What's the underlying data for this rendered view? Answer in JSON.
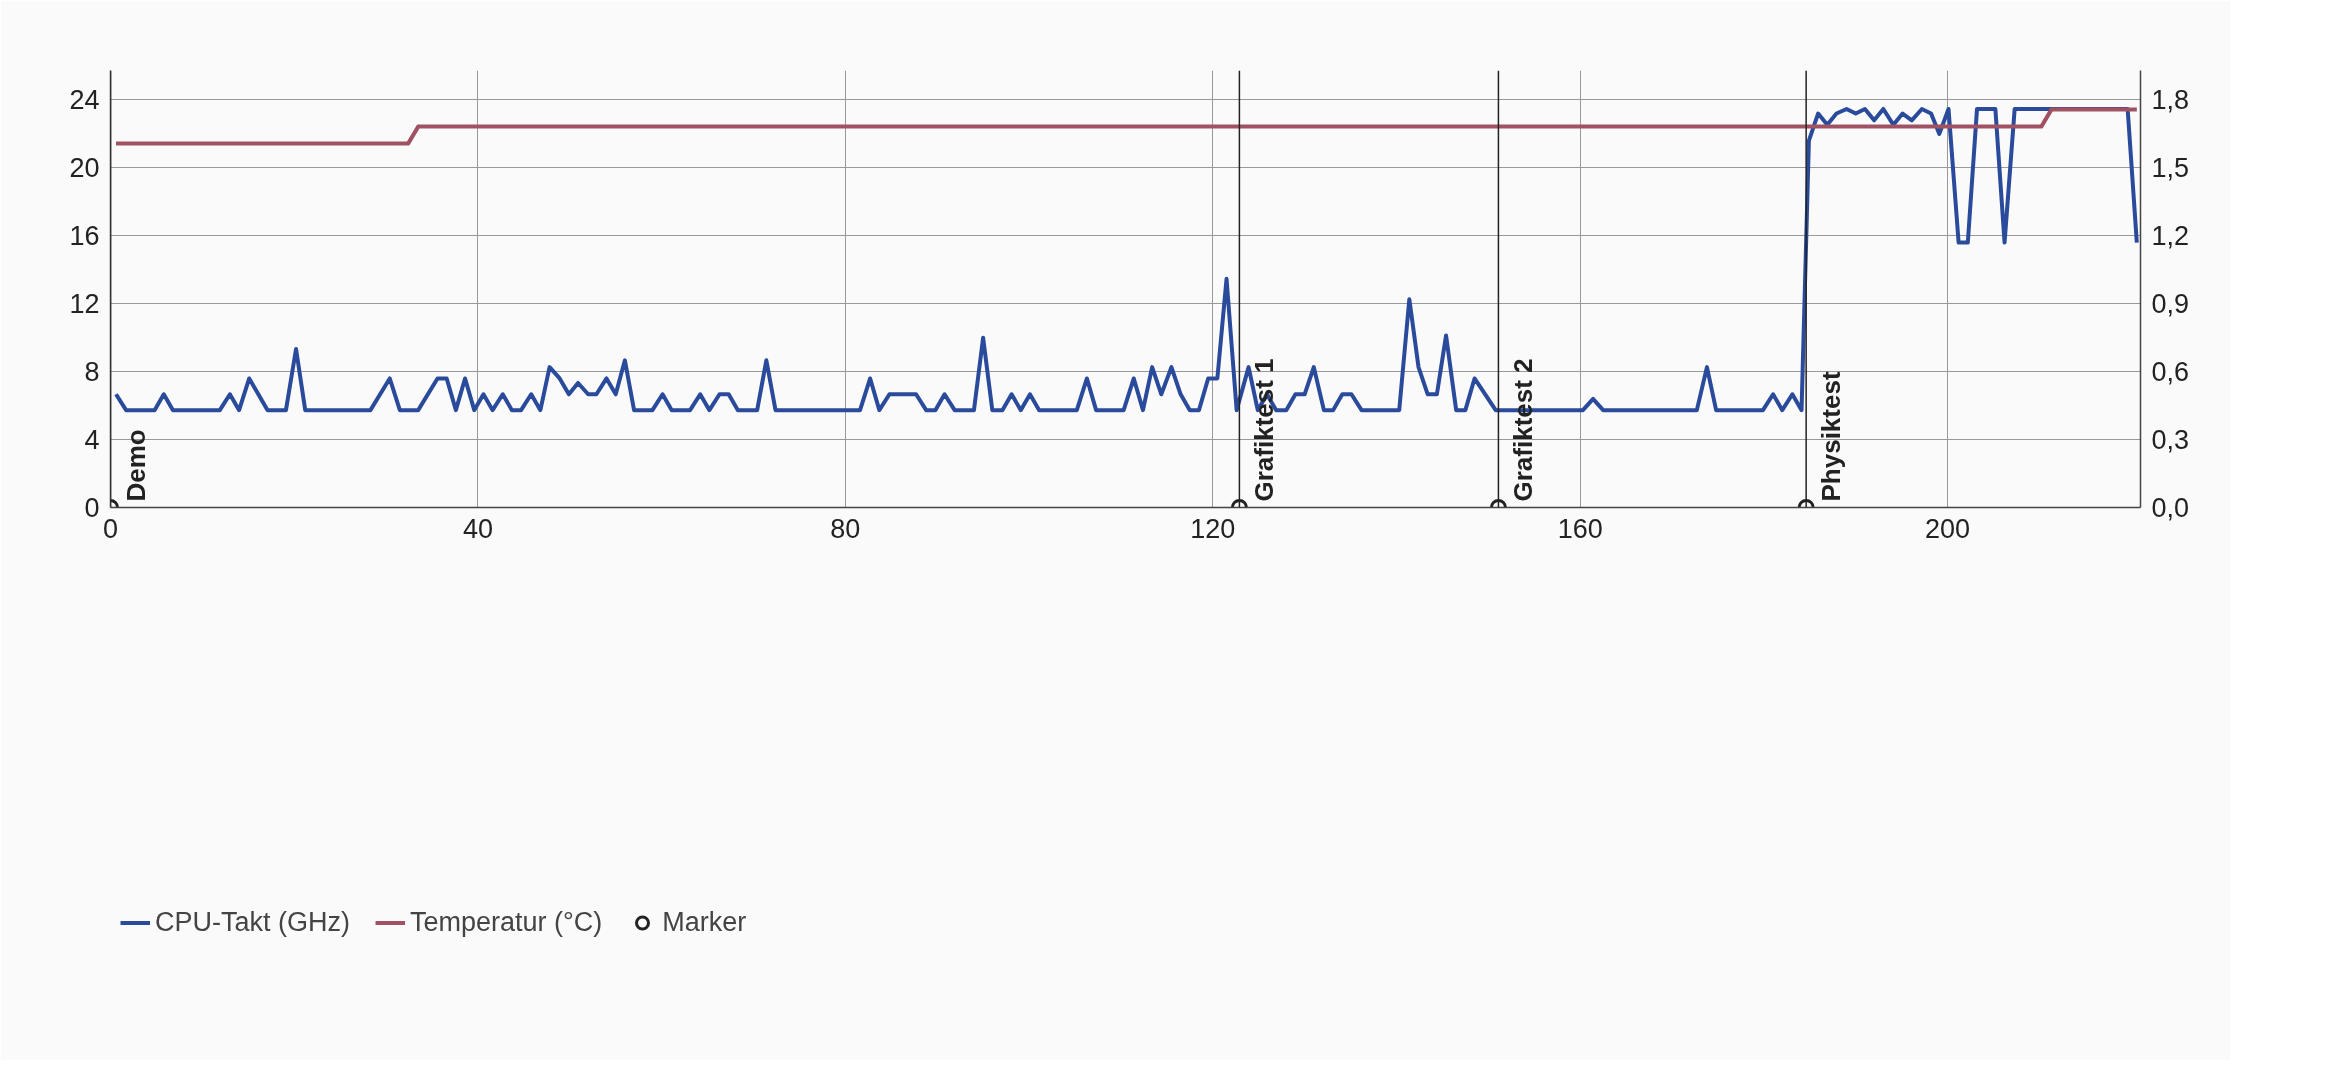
{
  "chart_data": {
    "type": "line",
    "xlim": [
      0,
      221
    ],
    "xticks": [
      0,
      40,
      80,
      120,
      160,
      200
    ],
    "ylim": [
      0,
      25.7
    ],
    "yticks": [
      0,
      4,
      8,
      12,
      16,
      20,
      24
    ],
    "y2lim": [
      0,
      1.93
    ],
    "y2ticks": [
      {
        "value": 0,
        "label": "0,0"
      },
      {
        "value": 0.3,
        "label": "0,3"
      },
      {
        "value": 0.6,
        "label": "0,6"
      },
      {
        "value": 0.9,
        "label": "0,9"
      },
      {
        "value": 1.2,
        "label": "1,2"
      },
      {
        "value": 1.5,
        "label": "1,5"
      },
      {
        "value": 1.8,
        "label": "1,8"
      }
    ],
    "grid": true,
    "legend": "bottom left",
    "line_style": "solid",
    "series": [
      {
        "name": "CPU-Takt (GHz)",
        "color": "#2a4b9b",
        "axis": "y2",
        "x": [
          0.6,
          1.7,
          4.8,
          5.8,
          6.8,
          11.9,
          13.0,
          14.0,
          15.1,
          17.1,
          19.1,
          20.2,
          21.2,
          28.3,
          30.4,
          31.5,
          33.5,
          35.6,
          36.6,
          37.6,
          38.6,
          39.6,
          40.6,
          41.6,
          42.7,
          43.7,
          44.7,
          45.8,
          46.8,
          47.8,
          48.9,
          49.9,
          50.9,
          52.0,
          52.9,
          54.0,
          55.0,
          56.0,
          57.0,
          59.0,
          60.1,
          61.1,
          63.1,
          64.2,
          65.2,
          66.3,
          67.3,
          68.3,
          70.4,
          71.4,
          72.4,
          81.6,
          82.7,
          83.7,
          84.8,
          87.7,
          88.8,
          89.8,
          90.8,
          91.9,
          94.0,
          95.0,
          96.0,
          97.1,
          98.1,
          99.1,
          100.1,
          101.1,
          105.2,
          106.3,
          107.3,
          110.3,
          111.4,
          112.4,
          113.4,
          114.4,
          115.5,
          116.5,
          117.5,
          118.5,
          119.5,
          120.5,
          121.5,
          122.6,
          123.9,
          124.9,
          125.9,
          126.9,
          128.0,
          129.0,
          130.0,
          131.0,
          132.1,
          133.1,
          134.1,
          135.1,
          136.2,
          140.3,
          141.4,
          142.4,
          143.4,
          144.4,
          145.4,
          146.5,
          147.5,
          148.5,
          150.8,
          160.3,
          161.4,
          162.5,
          172.7,
          173.8,
          174.8,
          179.9,
          181.0,
          182.0,
          183.1,
          184.1,
          184.9,
          185.9,
          186.9,
          187.9,
          189.0,
          190.0,
          191.0,
          192.0,
          193.0,
          194.1,
          195.1,
          196.1,
          197.2,
          198.2,
          199.1,
          200.1,
          201.2,
          202.2,
          203.2,
          205.2,
          206.2,
          207.3,
          219.6,
          220.6
        ],
        "values": [
          0.5,
          0.43,
          0.43,
          0.5,
          0.43,
          0.43,
          0.5,
          0.43,
          0.57,
          0.43,
          0.43,
          0.7,
          0.43,
          0.43,
          0.57,
          0.43,
          0.43,
          0.57,
          0.57,
          0.43,
          0.57,
          0.43,
          0.5,
          0.43,
          0.5,
          0.43,
          0.43,
          0.5,
          0.43,
          0.62,
          0.57,
          0.5,
          0.55,
          0.5,
          0.5,
          0.57,
          0.5,
          0.65,
          0.43,
          0.43,
          0.5,
          0.43,
          0.43,
          0.5,
          0.43,
          0.5,
          0.5,
          0.43,
          0.43,
          0.65,
          0.43,
          0.43,
          0.57,
          0.43,
          0.5,
          0.5,
          0.43,
          0.43,
          0.5,
          0.43,
          0.43,
          0.75,
          0.43,
          0.43,
          0.5,
          0.43,
          0.5,
          0.43,
          0.43,
          0.57,
          0.43,
          0.43,
          0.57,
          0.43,
          0.62,
          0.5,
          0.62,
          0.5,
          0.43,
          0.43,
          0.57,
          0.57,
          1.01,
          0.43,
          0.62,
          0.43,
          0.5,
          0.43,
          0.43,
          0.5,
          0.5,
          0.62,
          0.43,
          0.43,
          0.5,
          0.5,
          0.43,
          0.43,
          0.92,
          0.62,
          0.5,
          0.5,
          0.76,
          0.43,
          0.43,
          0.57,
          0.43,
          0.43,
          0.48,
          0.43,
          0.43,
          0.62,
          0.43,
          0.43,
          0.5,
          0.43,
          0.5,
          0.43,
          1.62,
          1.74,
          1.69,
          1.74,
          1.76,
          1.74,
          1.76,
          1.71,
          1.76,
          1.69,
          1.74,
          1.71,
          1.76,
          1.74,
          1.65,
          1.76,
          1.17,
          1.17,
          1.76,
          1.76,
          1.17,
          1.76,
          1.76,
          1.17
        ]
      },
      {
        "name": "Temperatur (°C)",
        "color": "#a05262",
        "x": [
          0.6,
          32.4,
          33.5,
          210.2,
          211.3,
          220.6
        ],
        "values": [
          21.4,
          21.4,
          22.4,
          22.4,
          23.4,
          23.4
        ]
      },
      {
        "name": "Marker",
        "type": "scatter",
        "marker": "circle",
        "color": "#222222",
        "x": [
          0,
          122.9,
          151.1,
          184.6
        ],
        "values": [
          0,
          0,
          0,
          0
        ]
      }
    ],
    "ref_lines": [
      {
        "axis": "x",
        "value": 0,
        "label": "Demo",
        "color": "#222222"
      },
      {
        "axis": "x",
        "value": 122.9,
        "label": "Grafiktest 1",
        "color": "#222222"
      },
      {
        "axis": "x",
        "value": 151.1,
        "label": "Grafiktest 2",
        "color": "#222222"
      },
      {
        "axis": "x",
        "value": 184.6,
        "label": "Physiktest",
        "color": "#222222"
      }
    ]
  }
}
